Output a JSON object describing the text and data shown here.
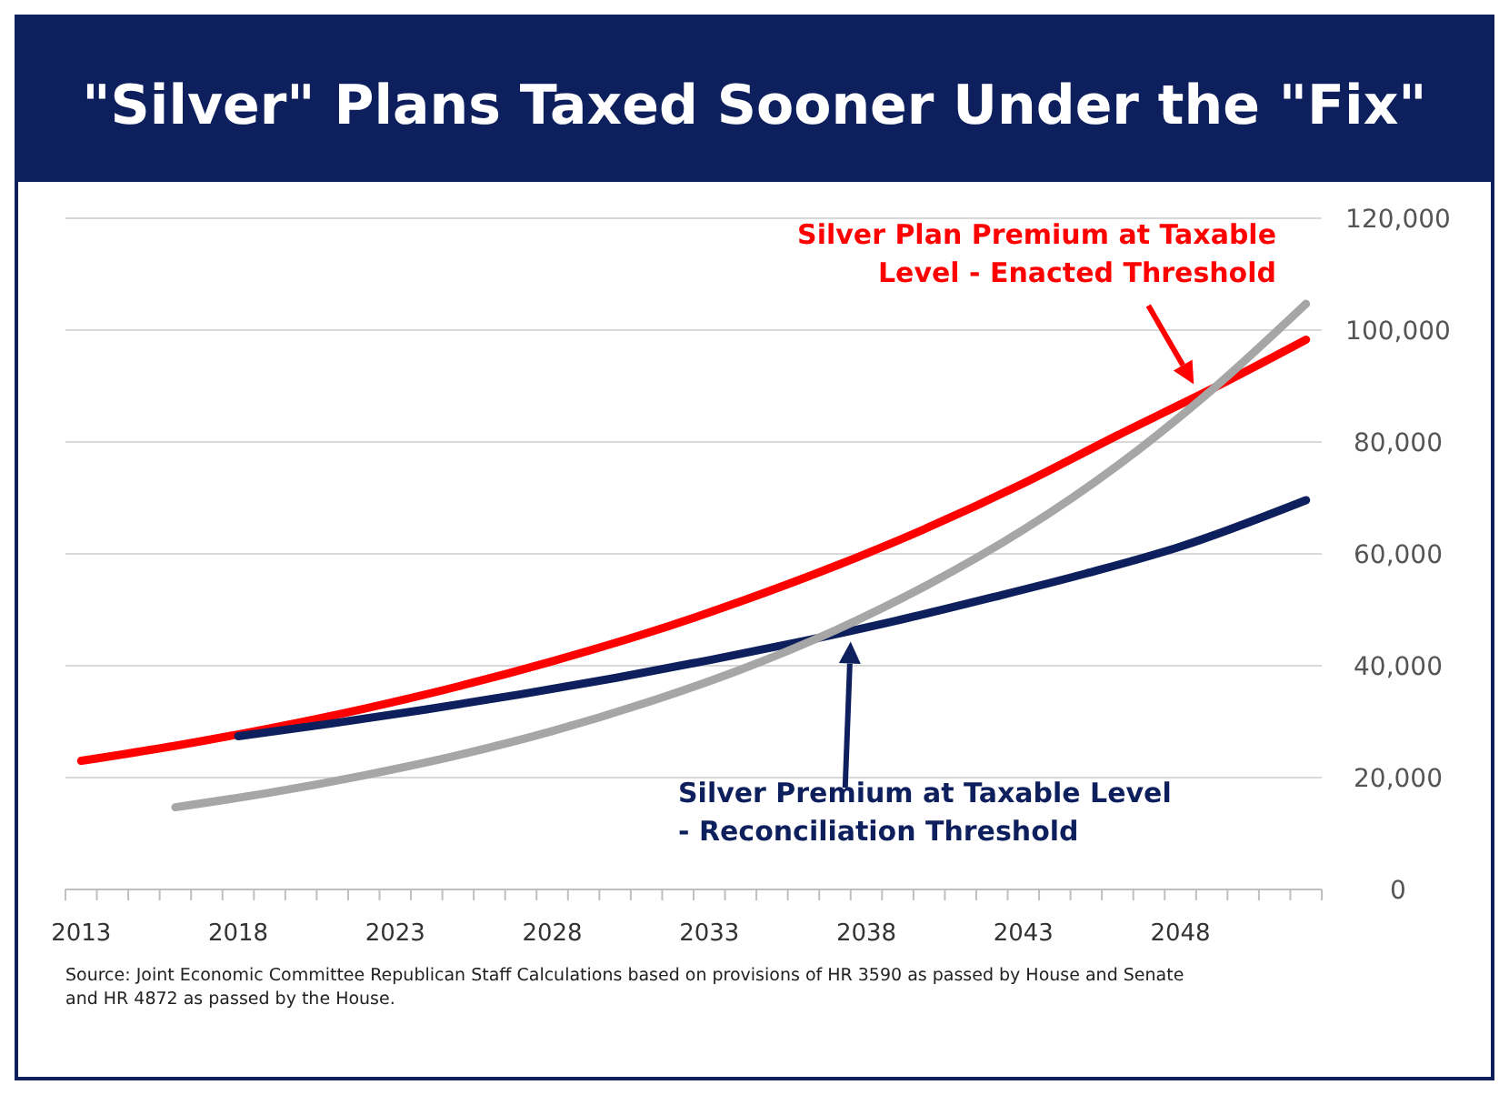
{
  "chart_data": {
    "type": "line",
    "title": "\"Silver\" Plans Taxed Sooner Under the \"Fix\"",
    "annotations": [
      "Source:   Joint Economic Committee Republican Staff Calculations based on provisions of HR 3590 as passed by House and Senate and HR 4872 as passed by the House."
    ],
    "xlim": [
      2012.5,
      2052.5
    ],
    "xticks": [
      {
        "value": 2013,
        "label": "2013"
      },
      {
        "value": 2018,
        "label": "2018"
      },
      {
        "value": 2023,
        "label": "2023"
      },
      {
        "value": 2028,
        "label": "2028"
      },
      {
        "value": 2033,
        "label": "2033"
      },
      {
        "value": 2038,
        "label": "2038"
      },
      {
        "value": 2043,
        "label": "2043"
      },
      {
        "value": 2048,
        "label": "2048"
      }
    ],
    "ylim": [
      0,
      120000
    ],
    "yticks": [
      {
        "value": 0,
        "label": "0"
      },
      {
        "value": 20000,
        "label": "20,000"
      },
      {
        "value": 40000,
        "label": "40,000"
      },
      {
        "value": 60000,
        "label": "60,000"
      },
      {
        "value": 80000,
        "label": "80,000"
      },
      {
        "value": 100000,
        "label": "100,000"
      },
      {
        "value": 120000,
        "label": "120,000"
      }
    ],
    "grid": "y",
    "marker": "none",
    "line_style": "solid",
    "series": [
      {
        "name": "Silver Plan Premium at Taxable Level - Enacted Threshold",
        "color": "#ff0000",
        "x": [
          2013,
          2016,
          2019,
          2022,
          2025,
          2028,
          2031,
          2034,
          2037,
          2040,
          2043,
          2046,
          2049,
          2052
        ],
        "values": [
          23000,
          25700,
          28800,
          32300,
          36300,
          40800,
          45800,
          51500,
          57800,
          64800,
          72600,
          81200,
          89500,
          98300
        ]
      },
      {
        "name": "Silver Premium at Taxable Level - Reconciliation Threshold",
        "color": "#0d1f5c",
        "x": [
          2018,
          2021,
          2024,
          2027,
          2030,
          2033,
          2036,
          2039,
          2042,
          2045,
          2048,
          2052
        ],
        "values": [
          27400,
          29700,
          32200,
          34900,
          37800,
          41000,
          44400,
          48100,
          52200,
          56500,
          61300,
          69600
        ]
      },
      {
        "color": "#a6a6a6",
        "x": [
          2016,
          2019,
          2022,
          2025,
          2028,
          2031,
          2034,
          2037,
          2040,
          2043,
          2046,
          2049,
          2052
        ],
        "values": [
          14700,
          17300,
          20400,
          24000,
          28300,
          33400,
          39300,
          46300,
          54600,
          64300,
          75800,
          89300,
          104700
        ]
      }
    ]
  }
}
